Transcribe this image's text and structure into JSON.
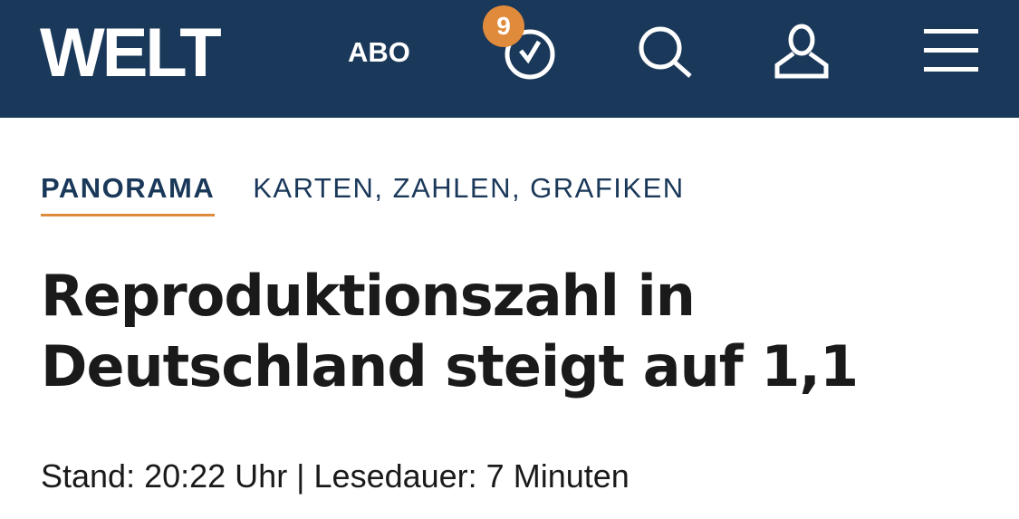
{
  "header": {
    "logo": "WELT",
    "abo_label": "ABO",
    "notification_count": "9",
    "icons": [
      "clock-check-icon",
      "search-icon",
      "user-icon",
      "menu-icon"
    ],
    "colors": {
      "brand": "#1a3859",
      "accent": "#e08a3c"
    }
  },
  "article": {
    "section": "PANORAMA",
    "subsection": "KARTEN, ZAHLEN, GRAFIKEN",
    "title": "Reproduktionszahl in Deutschland steigt auf 1,1",
    "meta": "Stand: 20:22 Uhr | Lesedauer: 7 Minuten"
  }
}
